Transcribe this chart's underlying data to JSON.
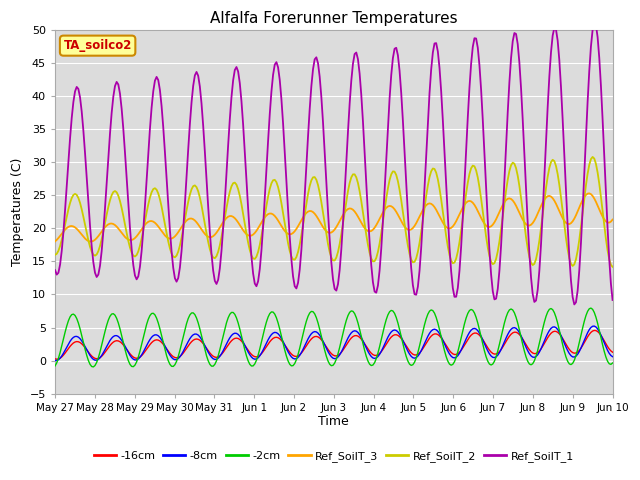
{
  "title": "Alfalfa Forerunner Temperatures",
  "ylabel": "Temperatures (C)",
  "xlabel": "Time",
  "annotation": "TA_soilco2",
  "ylim": [
    -5,
    50
  ],
  "legend_labels": [
    "-16cm",
    "-8cm",
    "-2cm",
    "Ref_SoilT_3",
    "Ref_SoilT_2",
    "Ref_SoilT_1"
  ],
  "legend_colors": [
    "#ff0000",
    "#0000ff",
    "#00cc00",
    "#ffa500",
    "#cccc00",
    "#aa00aa"
  ],
  "bg_color": "#dcdcdc",
  "grid_color": "#ffffff",
  "xtick_labels": [
    "May 27",
    "May 28",
    "May 29",
    "May 30",
    "May 31",
    "Jun 1",
    "Jun 2",
    "Jun 3",
    "Jun 4",
    "Jun 5",
    "Jun 6",
    "Jun 7",
    "Jun 8",
    "Jun 9",
    "Jun 10"
  ],
  "n_points": 336,
  "figsize": [
    6.4,
    4.8
  ],
  "dpi": 100
}
